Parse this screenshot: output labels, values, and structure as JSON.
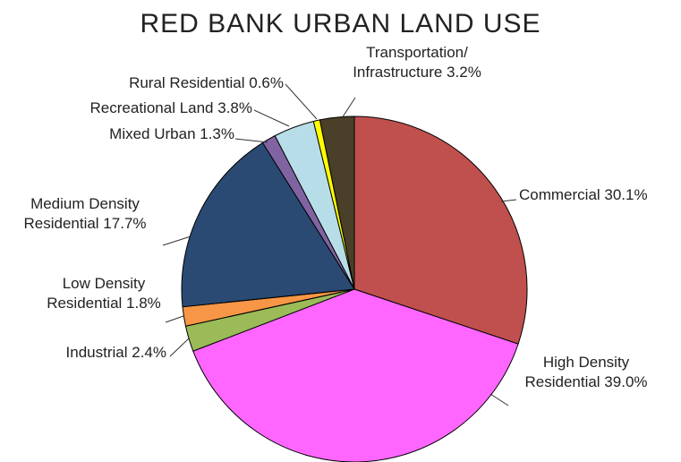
{
  "chart_data": {
    "type": "pie",
    "title": "RED BANK URBAN LAND USE",
    "slices": [
      {
        "label": "Commercial 30.1%",
        "label_lines": [
          "Commercial 30.1%"
        ],
        "value": 30.1,
        "color": "#c0504d"
      },
      {
        "label": "High Density Residential 39.0%",
        "label_lines": [
          "High Density",
          "Residential 39.0%"
        ],
        "value": 39.0,
        "color": "#ff66ff"
      },
      {
        "label": "Industrial 2.4%",
        "label_lines": [
          "Industrial 2.4%"
        ],
        "value": 2.4,
        "color": "#9bbb59"
      },
      {
        "label": "Low Density Residential 1.8%",
        "label_lines": [
          "Low Density",
          "Residential 1.8%"
        ],
        "value": 1.8,
        "color": "#f79646"
      },
      {
        "label": "Medium Density Residential 17.7%",
        "label_lines": [
          "Medium Density",
          "Residential 17.7%"
        ],
        "value": 17.7,
        "color": "#2a4a73"
      },
      {
        "label": "Mixed Urban 1.3%",
        "label_lines": [
          "Mixed Urban 1.3%"
        ],
        "value": 1.3,
        "color": "#8064a2"
      },
      {
        "label": "Recreational Land 3.8%",
        "label_lines": [
          "Recreational Land 3.8%"
        ],
        "value": 3.8,
        "color": "#b7dde8"
      },
      {
        "label": "Rural Residential 0.6%",
        "label_lines": [
          "Rural Residential 0.6%"
        ],
        "value": 0.6,
        "color": "#ffff00"
      },
      {
        "label": "Transportation/ Infrastructure 3.2%",
        "label_lines": [
          "Transportation/",
          "Infrastructure 3.2%"
        ],
        "value": 3.2,
        "color": "#4a3f28"
      }
    ]
  }
}
